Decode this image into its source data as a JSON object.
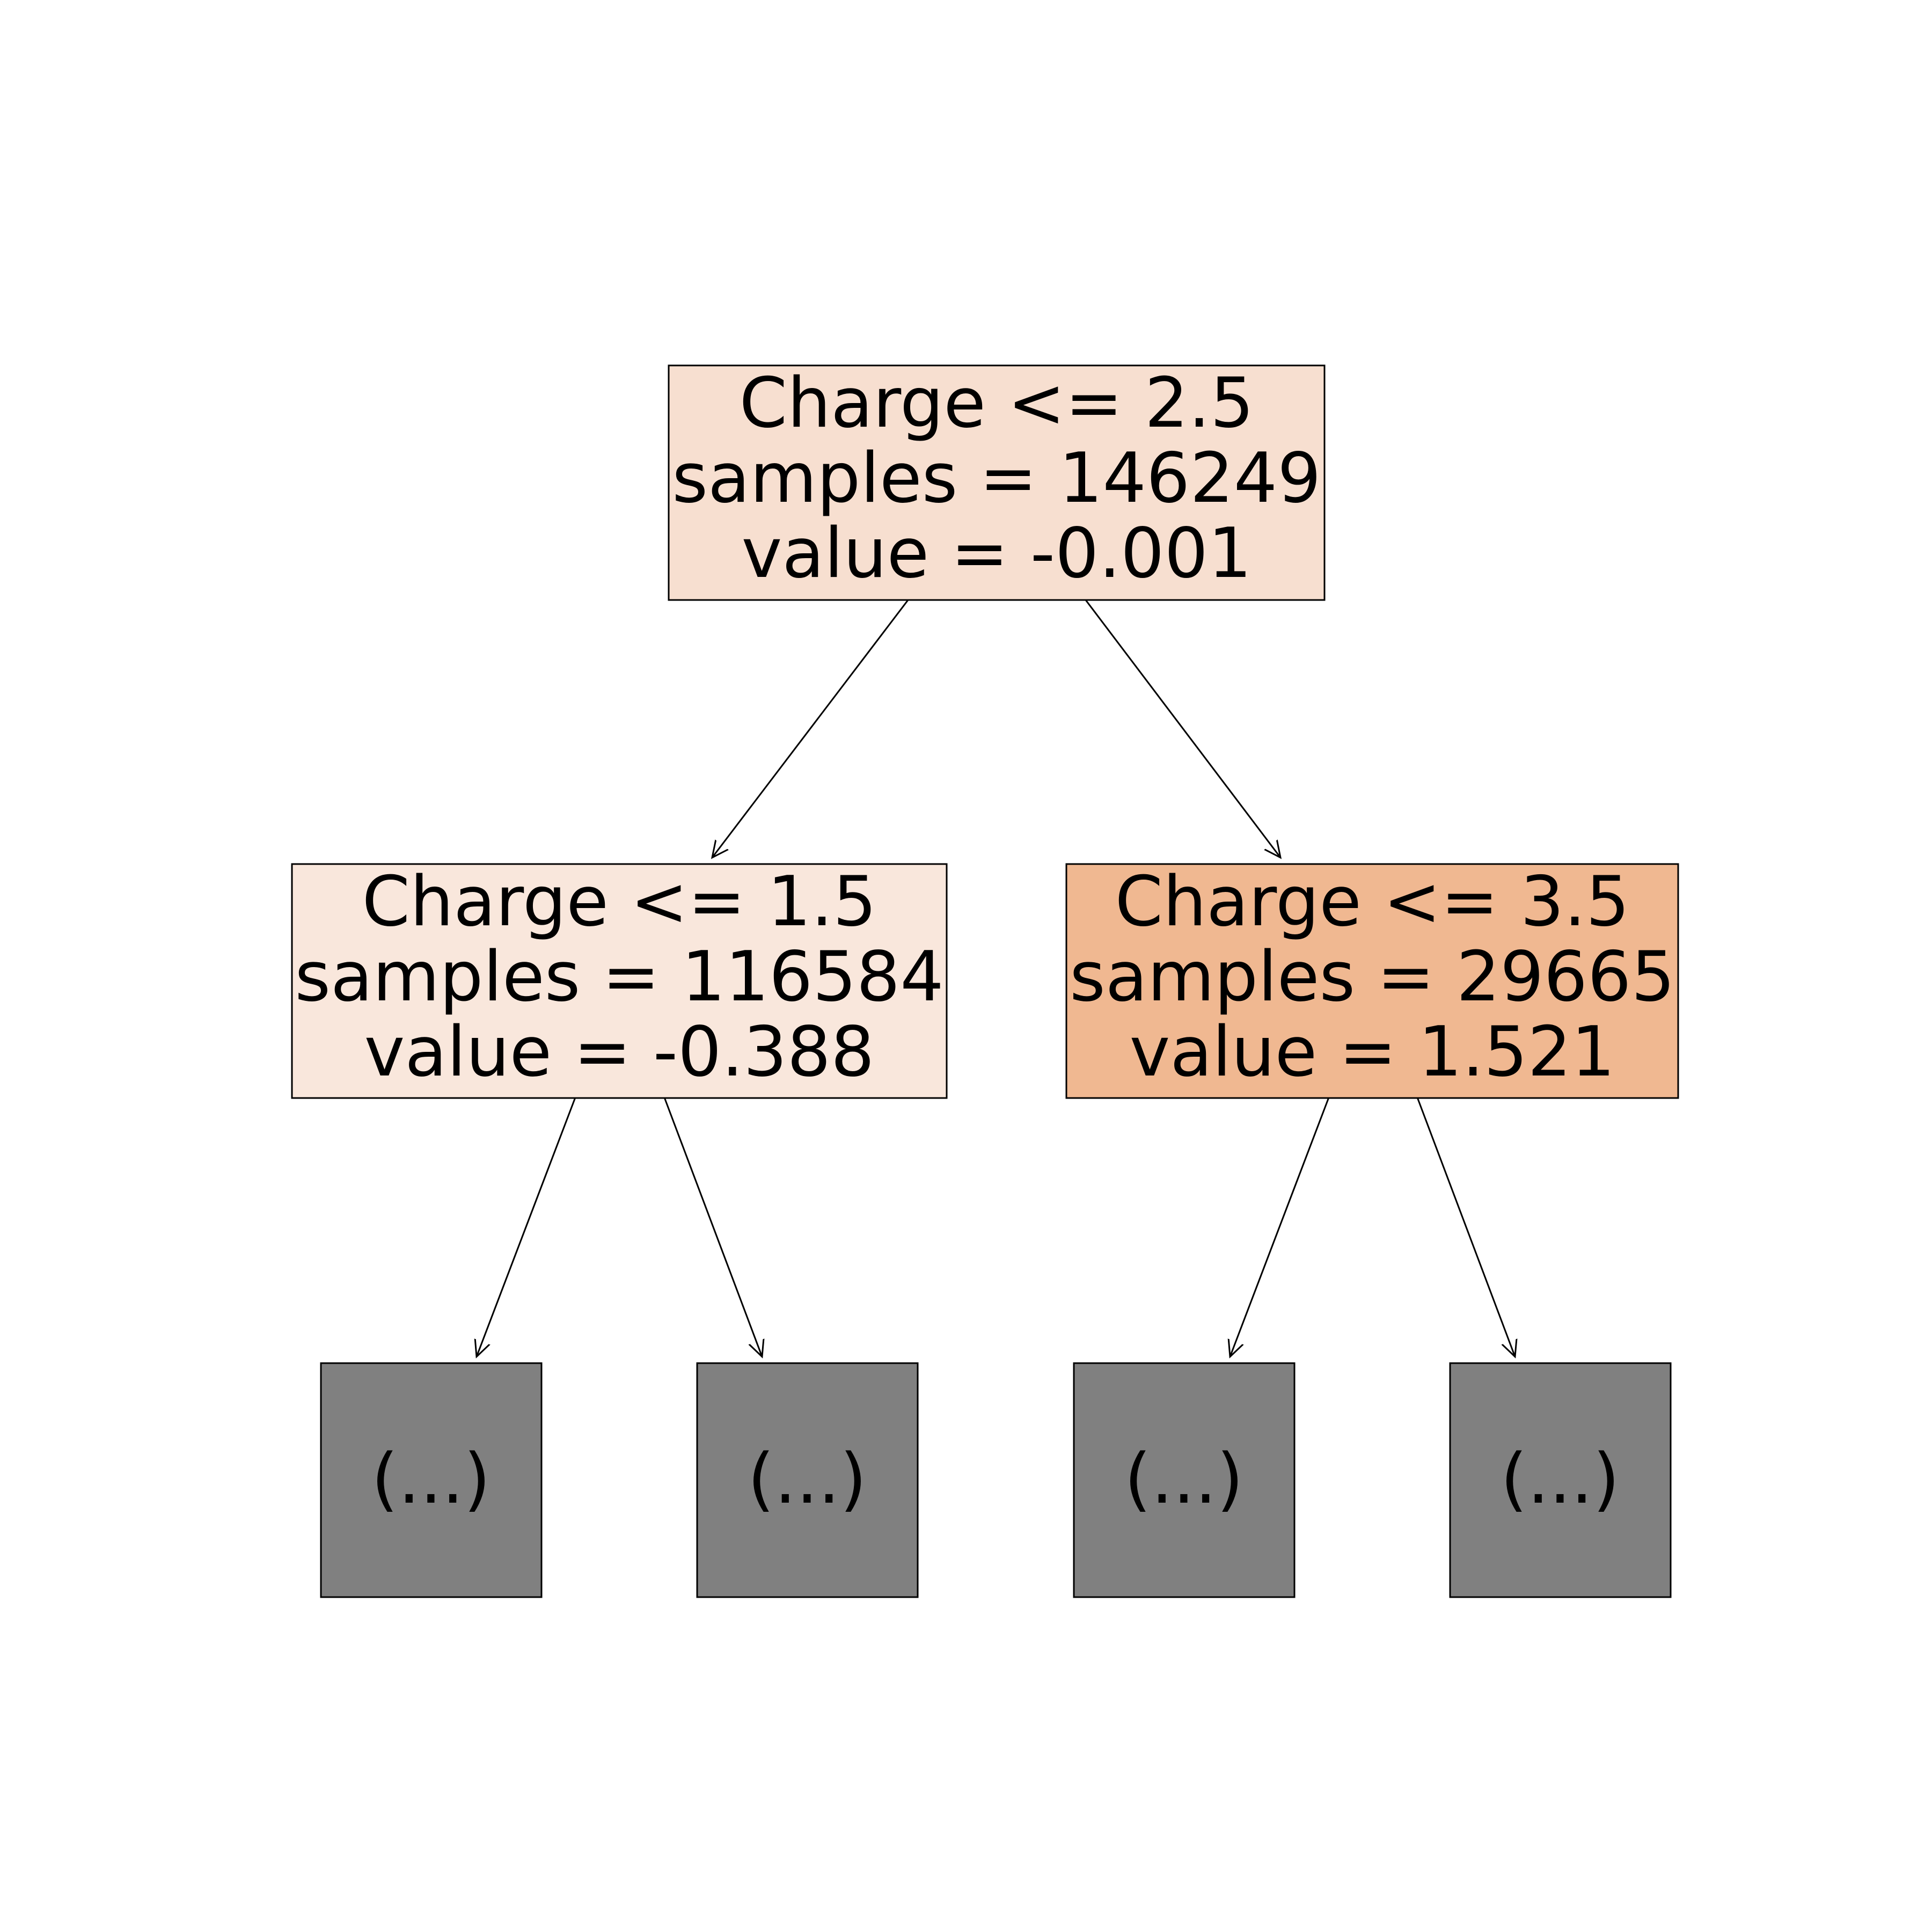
{
  "colors": {
    "background": "#ffffff",
    "truncated_fill": "#808080",
    "edge": "#000000"
  },
  "nodes": {
    "root": {
      "condition": "Charge <= 2.5",
      "samples": "samples = 146249",
      "value": "value = -0.001",
      "fill": "#f7dfd0"
    },
    "left": {
      "condition": "Charge <= 1.5",
      "samples": "samples = 116584",
      "value": "value = -0.388",
      "fill": "#f9e7dc"
    },
    "right": {
      "condition": "Charge <= 3.5",
      "samples": "samples = 29665",
      "value": "value = 1.521",
      "fill": "#f0b891"
    }
  },
  "truncated": [
    {
      "label": "(...)"
    },
    {
      "label": "(...)"
    },
    {
      "label": "(...)"
    },
    {
      "label": "(...)"
    }
  ]
}
